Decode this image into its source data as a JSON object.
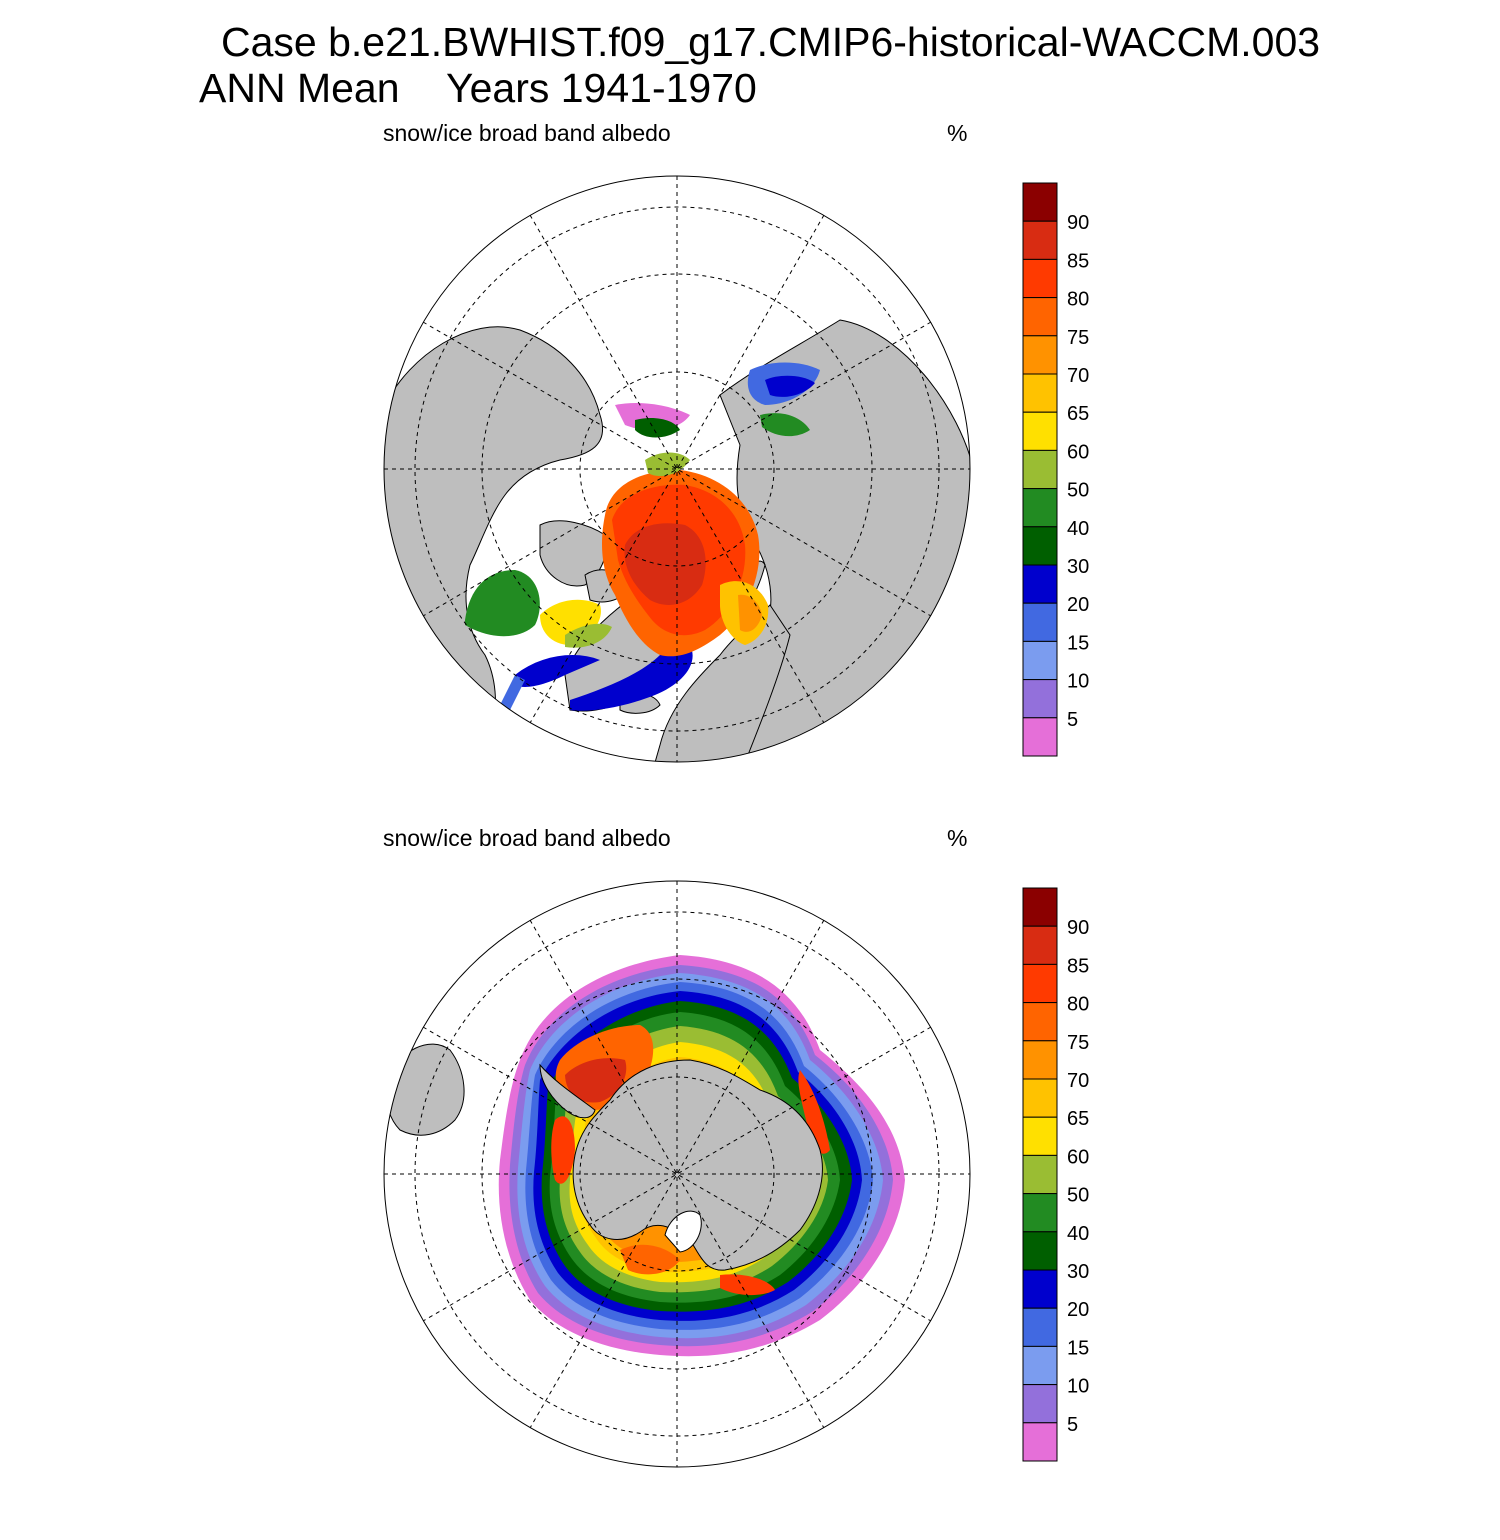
{
  "header": {
    "case_line": "Case b.e21.BWHIST.f09_g17.CMIP6-historical-WACCM.003",
    "mean_label": "ANN Mean",
    "years_label": "Years 1941-1970"
  },
  "panels": [
    {
      "id": "northern-hemisphere",
      "field_name": "snow/ice broad band albedo",
      "units": "%"
    },
    {
      "id": "southern-hemisphere",
      "field_name": "snow/ice broad band albedo",
      "units": "%"
    }
  ],
  "colorbar": {
    "labels": [
      "90",
      "85",
      "80",
      "75",
      "70",
      "65",
      "60",
      "50",
      "40",
      "30",
      "20",
      "15",
      "10",
      "5"
    ],
    "colors_top_to_bottom": [
      "#8b0000",
      "#d82c12",
      "#ff3a00",
      "#ff6400",
      "#ff9200",
      "#ffc200",
      "#ffe000",
      "#9abd33",
      "#228b22",
      "#005f00",
      "#0000cd",
      "#4169e1",
      "#7b9cef",
      "#9370db",
      "#e56fd8"
    ]
  },
  "map_colors": {
    "land": "#bebebe",
    "ocean": "#ffffff",
    "coastline": "#000000",
    "grid": "#000000"
  }
}
